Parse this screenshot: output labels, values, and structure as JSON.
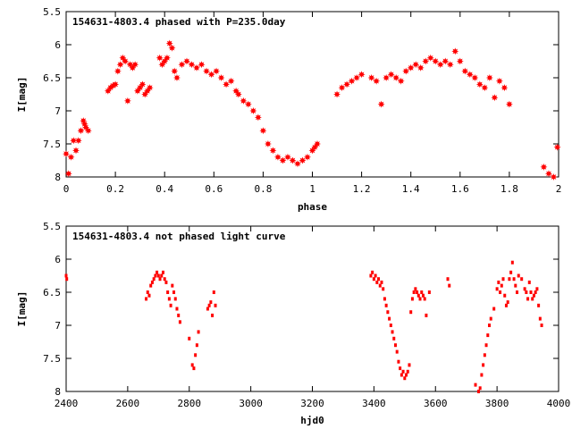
{
  "chart_data": [
    {
      "type": "scatter",
      "title": "154631-4803.4 phased with P=235.0day",
      "xlabel": "phase",
      "ylabel": "I[mag]",
      "xlim": [
        0,
        2
      ],
      "ylim": [
        5.5,
        8
      ],
      "y_inverted": true,
      "grid": false,
      "marker_color": "#ff0000",
      "marker": "star",
      "xticks": [
        "0",
        "0.2",
        "0.4",
        "0.6",
        "0.8",
        "1",
        "1.2",
        "1.4",
        "1.6",
        "1.8",
        "2"
      ],
      "yticks": [
        "5.5",
        "6",
        "6.5",
        "7",
        "7.5",
        "8"
      ],
      "x": [
        0.0,
        0.01,
        0.02,
        0.03,
        0.04,
        0.05,
        0.06,
        0.07,
        0.075,
        0.08,
        0.09,
        0.17,
        0.18,
        0.19,
        0.2,
        0.21,
        0.22,
        0.23,
        0.24,
        0.25,
        0.26,
        0.27,
        0.28,
        0.29,
        0.3,
        0.31,
        0.32,
        0.33,
        0.34,
        0.38,
        0.39,
        0.4,
        0.41,
        0.42,
        0.43,
        0.44,
        0.45,
        0.47,
        0.49,
        0.51,
        0.53,
        0.55,
        0.57,
        0.59,
        0.61,
        0.63,
        0.65,
        0.67,
        0.69,
        0.7,
        0.72,
        0.74,
        0.76,
        0.78,
        0.8,
        0.82,
        0.84,
        0.86,
        0.88,
        0.9,
        0.92,
        0.94,
        0.96,
        0.98,
        1.0,
        1.01,
        1.02,
        1.1,
        1.12,
        1.14,
        1.16,
        1.18,
        1.2,
        1.24,
        1.26,
        1.28,
        1.3,
        1.32,
        1.34,
        1.36,
        1.38,
        1.4,
        1.42,
        1.44,
        1.46,
        1.48,
        1.5,
        1.52,
        1.54,
        1.56,
        1.58,
        1.6,
        1.62,
        1.64,
        1.66,
        1.68,
        1.7,
        1.72,
        1.74,
        1.76,
        1.78,
        1.8,
        1.94,
        1.96,
        1.98,
        1.995
      ],
      "y": [
        7.65,
        7.95,
        7.7,
        7.45,
        7.6,
        7.45,
        7.3,
        7.15,
        7.2,
        7.25,
        7.3,
        6.7,
        6.65,
        6.62,
        6.6,
        6.4,
        6.3,
        6.2,
        6.25,
        6.85,
        6.3,
        6.35,
        6.3,
        6.7,
        6.65,
        6.6,
        6.75,
        6.7,
        6.65,
        6.2,
        6.3,
        6.25,
        6.2,
        5.98,
        6.05,
        6.4,
        6.5,
        6.3,
        6.25,
        6.3,
        6.35,
        6.3,
        6.4,
        6.45,
        6.4,
        6.5,
        6.6,
        6.55,
        6.7,
        6.75,
        6.85,
        6.9,
        7.0,
        7.1,
        7.3,
        7.5,
        7.6,
        7.7,
        7.75,
        7.7,
        7.75,
        7.8,
        7.75,
        7.7,
        7.6,
        7.55,
        7.5,
        6.75,
        6.65,
        6.6,
        6.55,
        6.5,
        6.45,
        6.5,
        6.55,
        6.9,
        6.5,
        6.45,
        6.5,
        6.55,
        6.4,
        6.35,
        6.3,
        6.35,
        6.25,
        6.2,
        6.25,
        6.3,
        6.25,
        6.3,
        6.1,
        6.25,
        6.4,
        6.45,
        6.5,
        6.6,
        6.65,
        6.5,
        6.8,
        6.55,
        6.65,
        6.9,
        7.85,
        7.95,
        8.0,
        7.55
      ]
    },
    {
      "type": "scatter",
      "title": "154631-4803.4 not phased light curve",
      "xlabel": "hjd0",
      "ylabel": "I[mag]",
      "xlim": [
        2400,
        4000
      ],
      "ylim": [
        5.5,
        8
      ],
      "y_inverted": true,
      "grid": false,
      "marker_color": "#ff0000",
      "marker": "dot",
      "xticks": [
        "2400",
        "2600",
        "2800",
        "3000",
        "3200",
        "3400",
        "3600",
        "3800",
        "4000"
      ],
      "yticks": [
        "5.5",
        "6",
        "6.5",
        "7",
        "7.5",
        "8"
      ],
      "x": [
        2400,
        2402,
        2660,
        2665,
        2670,
        2675,
        2680,
        2685,
        2690,
        2695,
        2700,
        2705,
        2710,
        2715,
        2720,
        2725,
        2730,
        2735,
        2740,
        2745,
        2750,
        2755,
        2760,
        2765,
        2770,
        2800,
        2810,
        2815,
        2820,
        2825,
        2830,
        2860,
        2865,
        2870,
        2875,
        2880,
        2885,
        3390,
        3395,
        3400,
        3405,
        3410,
        3415,
        3420,
        3425,
        3430,
        3435,
        3440,
        3445,
        3450,
        3455,
        3460,
        3465,
        3470,
        3475,
        3480,
        3485,
        3490,
        3495,
        3500,
        3505,
        3510,
        3515,
        3520,
        3525,
        3530,
        3535,
        3540,
        3545,
        3550,
        3555,
        3560,
        3565,
        3570,
        3580,
        3640,
        3645,
        3730,
        3740,
        3745,
        3750,
        3755,
        3760,
        3765,
        3770,
        3775,
        3780,
        3790,
        3800,
        3805,
        3810,
        3815,
        3820,
        3825,
        3830,
        3835,
        3840,
        3845,
        3850,
        3855,
        3860,
        3865,
        3870,
        3880,
        3890,
        3895,
        3900,
        3905,
        3910,
        3915,
        3920,
        3925,
        3930,
        3935,
        3940,
        3945
      ],
      "y": [
        6.25,
        6.3,
        6.6,
        6.5,
        6.55,
        6.4,
        6.35,
        6.3,
        6.25,
        6.2,
        6.25,
        6.3,
        6.25,
        6.2,
        6.3,
        6.35,
        6.5,
        6.6,
        6.7,
        6.4,
        6.5,
        6.6,
        6.75,
        6.85,
        6.95,
        7.2,
        7.6,
        7.65,
        7.45,
        7.3,
        7.1,
        6.75,
        6.7,
        6.65,
        6.85,
        6.5,
        6.7,
        6.25,
        6.2,
        6.3,
        6.25,
        6.35,
        6.3,
        6.4,
        6.35,
        6.45,
        6.6,
        6.7,
        6.8,
        6.9,
        7.0,
        7.1,
        7.2,
        7.3,
        7.4,
        7.55,
        7.65,
        7.75,
        7.7,
        7.8,
        7.75,
        7.7,
        7.6,
        6.8,
        6.6,
        6.5,
        6.45,
        6.5,
        6.55,
        6.6,
        6.5,
        6.55,
        6.6,
        6.85,
        6.5,
        6.3,
        6.4,
        7.9,
        8.0,
        7.95,
        7.75,
        7.6,
        7.45,
        7.3,
        7.15,
        7.0,
        6.9,
        6.75,
        6.45,
        6.35,
        6.5,
        6.4,
        6.3,
        6.55,
        6.7,
        6.65,
        6.3,
        6.2,
        6.05,
        6.3,
        6.4,
        6.5,
        6.25,
        6.3,
        6.45,
        6.5,
        6.6,
        6.35,
        6.5,
        6.6,
        6.55,
        6.5,
        6.45,
        6.7,
        6.9,
        7.0
      ]
    }
  ]
}
